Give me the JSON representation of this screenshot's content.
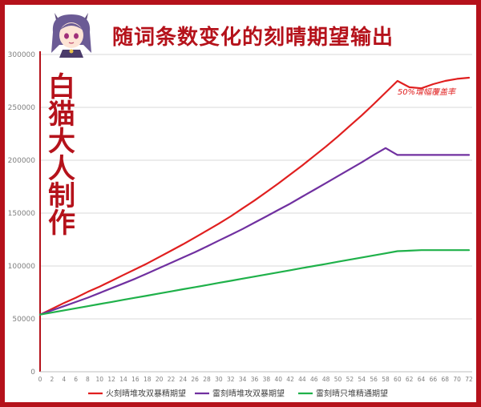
{
  "title": "随词条数变化的刻晴期望输出",
  "watermark": "白猫大人制作",
  "colors": {
    "frame": "#b5121b",
    "grid": "#d9d9d9",
    "axis": "#b5121b",
    "tick_text": "#7f7f7f"
  },
  "chart_data": {
    "type": "line",
    "title": "随词条数变化的刻晴期望输出",
    "xlabel": "",
    "ylabel": "",
    "x": [
      0,
      2,
      4,
      6,
      8,
      10,
      12,
      14,
      16,
      18,
      20,
      22,
      24,
      26,
      28,
      30,
      32,
      34,
      36,
      38,
      40,
      42,
      44,
      46,
      48,
      50,
      52,
      54,
      56,
      58,
      60,
      62,
      64,
      66,
      68,
      70,
      72
    ],
    "xlim": [
      0,
      72
    ],
    "ylim": [
      0,
      300000
    ],
    "yticks": [
      0,
      50000,
      100000,
      150000,
      200000,
      250000,
      300000
    ],
    "grid": true,
    "legend": "bottom",
    "series": [
      {
        "name": "火刻晴堆攻双暴精期望",
        "color": "#e01f1f",
        "values": [
          54000,
          59500,
          65000,
          70000,
          75500,
          80500,
          86000,
          91500,
          97000,
          102500,
          108500,
          114500,
          120500,
          127000,
          133500,
          140000,
          147000,
          154500,
          162000,
          170000,
          178000,
          186500,
          195000,
          204000,
          213000,
          222500,
          232500,
          242500,
          253000,
          264000,
          275000,
          269000,
          268000,
          272000,
          275000,
          277000,
          278000
        ]
      },
      {
        "name": "雷刻晴堆攻双暴期望",
        "color": "#7030a0",
        "values": [
          54000,
          58000,
          62000,
          66000,
          70000,
          74500,
          79000,
          83500,
          88000,
          93000,
          98000,
          103000,
          108000,
          113000,
          118500,
          124000,
          129500,
          135000,
          141000,
          147000,
          153000,
          159000,
          165500,
          172000,
          178500,
          185000,
          191500,
          198000,
          205000,
          211500,
          205000,
          205000,
          205000,
          205000,
          205000,
          205000,
          205000
        ]
      },
      {
        "name": "雷刻晴只堆精通期望",
        "color": "#1fb14a",
        "values": [
          54000,
          56000,
          58000,
          60000,
          62000,
          64000,
          66000,
          68000,
          70000,
          72000,
          74000,
          76000,
          78000,
          80000,
          82000,
          84000,
          86000,
          88000,
          90000,
          92000,
          94000,
          96000,
          98000,
          100000,
          102000,
          104000,
          106000,
          108000,
          110000,
          112000,
          114000,
          114500,
          115000,
          115000,
          115000,
          115000,
          115000
        ]
      }
    ],
    "annotations": [
      {
        "text": "50%增幅覆盖率",
        "x": 60,
        "y": 262000,
        "color": "#e01f1f"
      }
    ]
  }
}
